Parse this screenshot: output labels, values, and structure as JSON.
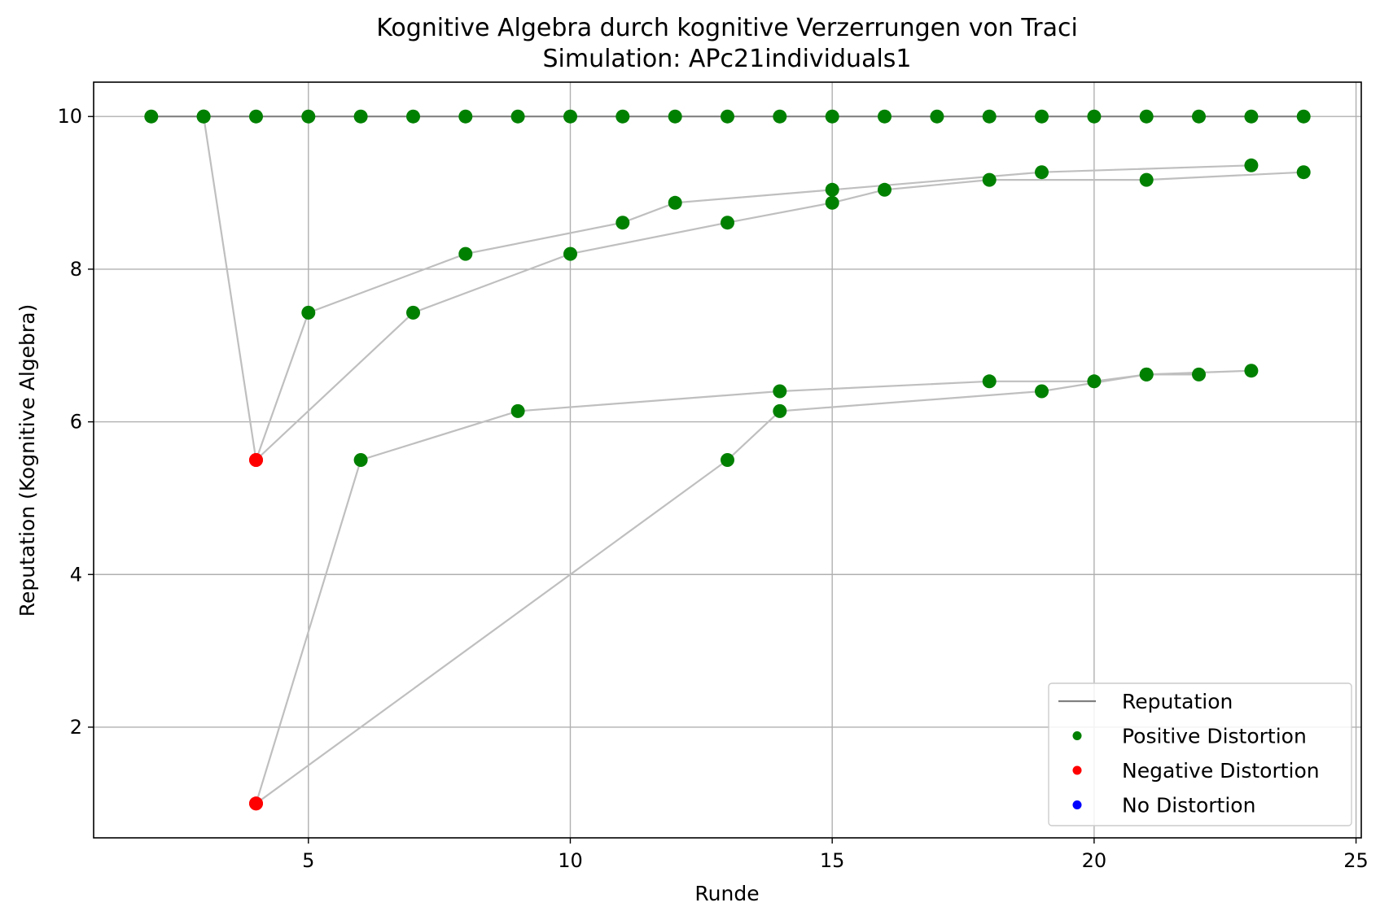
{
  "chart_data": {
    "type": "scatter",
    "title": "Kognitive Algebra durch kognitive Verzerrungen von Traci",
    "subtitle": "Simulation: APc21individuals1",
    "xlabel": "Runde",
    "ylabel": "Reputation (Kognitive Algebra)",
    "xlim": [
      0.9,
      25.1
    ],
    "ylim": [
      0.55,
      10.45
    ],
    "xticks": [
      5,
      10,
      15,
      20,
      25
    ],
    "yticks": [
      2,
      4,
      6,
      8,
      10
    ],
    "grid": true,
    "legend_position": "lower-right",
    "legend": [
      {
        "label": "Reputation",
        "kind": "line",
        "color": "#808080"
      },
      {
        "label": "Positive Distortion",
        "kind": "marker",
        "color": "#008000"
      },
      {
        "label": "Negative Distortion",
        "kind": "marker",
        "color": "#ff0000"
      },
      {
        "label": "No Distortion",
        "kind": "marker",
        "color": "#0000ff"
      }
    ],
    "colors": {
      "positive": "#008000",
      "negative": "#ff0000",
      "none": "#0000ff",
      "reputation_line": "#808080",
      "trajectory_line": "#bfbfbf",
      "grid": "#b0b0b0"
    },
    "series": [
      {
        "x": [
          2,
          3,
          4,
          5,
          6,
          7,
          8,
          9,
          10,
          11,
          12,
          13,
          14,
          15,
          16,
          17,
          18,
          19,
          20,
          21,
          22,
          23,
          24
        ],
        "y": [
          10,
          10,
          10,
          10,
          10,
          10,
          10,
          10,
          10,
          10,
          10,
          10,
          10,
          10,
          10,
          10,
          10,
          10,
          10,
          10,
          10,
          10,
          10
        ],
        "marker": [
          "positive",
          "positive",
          "positive",
          "positive",
          "positive",
          "positive",
          "positive",
          "positive",
          "positive",
          "positive",
          "positive",
          "positive",
          "positive",
          "positive",
          "positive",
          "positive",
          "positive",
          "positive",
          "positive",
          "positive",
          "positive",
          "positive",
          "positive"
        ],
        "line": "reputation"
      },
      {
        "x": [
          3,
          4,
          5,
          8,
          11,
          12,
          15,
          19,
          23
        ],
        "y": [
          10,
          5.5,
          7.43,
          8.2,
          8.61,
          8.87,
          9.04,
          9.27,
          9.36
        ],
        "marker": [
          "positive",
          "negative",
          "positive",
          "positive",
          "positive",
          "positive",
          "positive",
          "positive",
          "positive"
        ],
        "line": "trajectory"
      },
      {
        "x": [
          4,
          7,
          10,
          13,
          15,
          16,
          18,
          21,
          24
        ],
        "y": [
          5.5,
          7.43,
          8.2,
          8.61,
          8.87,
          9.04,
          9.17,
          9.17,
          9.27
        ],
        "marker": [
          "negative",
          "positive",
          "positive",
          "positive",
          "positive",
          "positive",
          "positive",
          "positive",
          "positive"
        ],
        "line": "trajectory"
      },
      {
        "x": [
          4,
          6,
          9,
          14,
          18,
          20,
          21,
          23
        ],
        "y": [
          1.0,
          5.5,
          6.14,
          6.4,
          6.53,
          6.53,
          6.62,
          6.67
        ],
        "marker": [
          "negative",
          "positive",
          "positive",
          "positive",
          "positive",
          "positive",
          "positive",
          "positive"
        ],
        "line": "trajectory"
      },
      {
        "x": [
          4,
          13,
          14,
          19,
          21,
          22
        ],
        "y": [
          1.0,
          5.5,
          6.14,
          6.4,
          6.62,
          6.62
        ],
        "marker": [
          "negative",
          "positive",
          "positive",
          "positive",
          "positive",
          "positive"
        ],
        "line": "trajectory"
      }
    ]
  }
}
